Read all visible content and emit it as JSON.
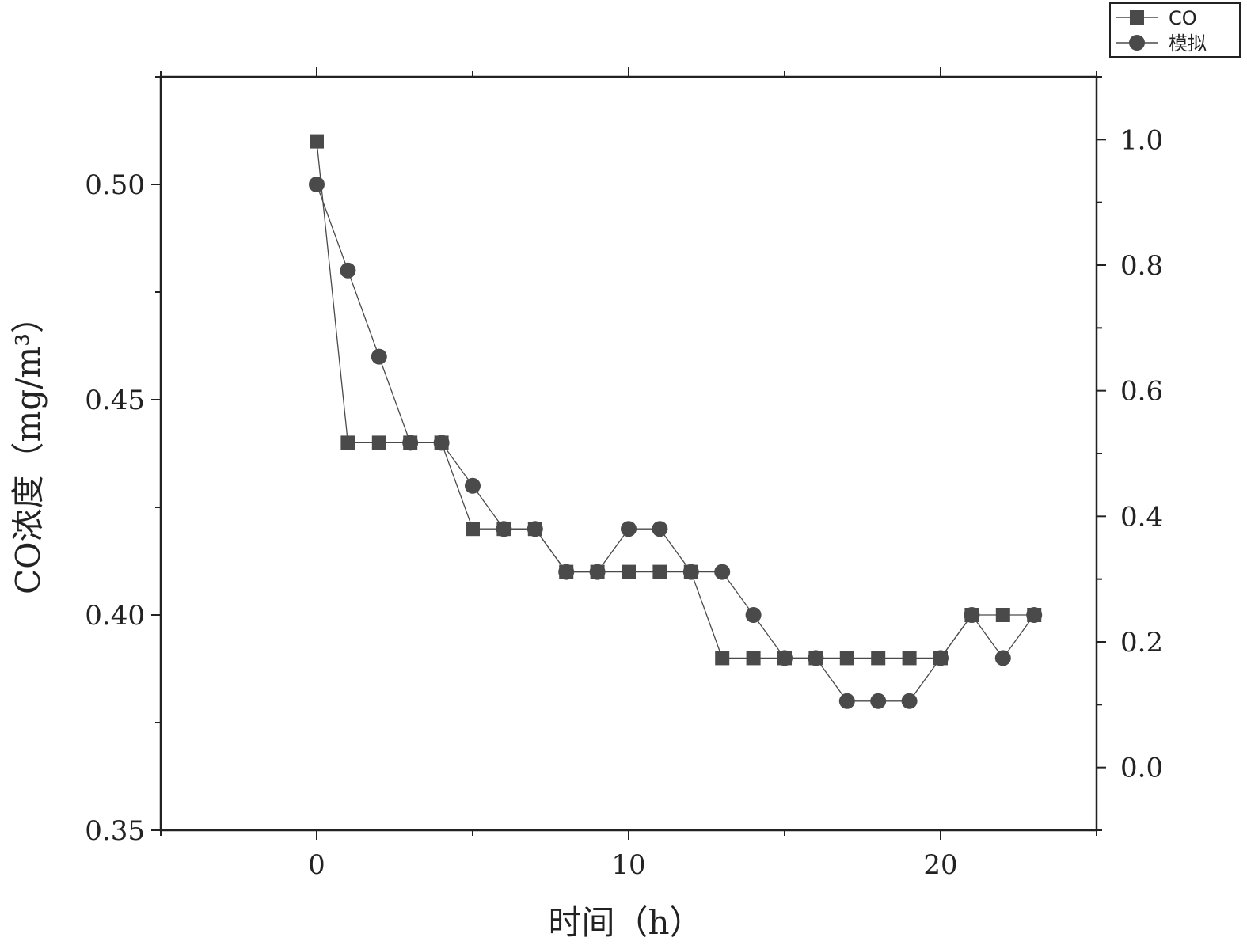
{
  "chart_data": {
    "type": "line",
    "xlabel": "时间（h）",
    "ylabel": "CO浓度（mg/m³）",
    "xlim": [
      -5,
      25
    ],
    "ylim": [
      0.35,
      0.525
    ],
    "y2lim": [
      -0.1,
      1.1
    ],
    "x_ticks": [
      0,
      10,
      20
    ],
    "x_tick_labels": [
      "0",
      "10",
      "20"
    ],
    "y_ticks": [
      0.35,
      0.4,
      0.45,
      0.5
    ],
    "y_tick_labels": [
      "0.35",
      "0.40",
      "0.45",
      "0.50"
    ],
    "y2_ticks": [
      0.0,
      0.2,
      0.4,
      0.6,
      0.8,
      1.0
    ],
    "y2_tick_labels": [
      "0.0",
      "0.2",
      "0.4",
      "0.6",
      "0.8",
      "1.0"
    ],
    "grid": false,
    "legend_position": "top-right",
    "x": [
      0,
      1,
      2,
      3,
      4,
      5,
      6,
      7,
      8,
      9,
      10,
      11,
      12,
      13,
      14,
      15,
      16,
      17,
      18,
      19,
      20,
      21,
      22,
      23
    ],
    "series": [
      {
        "name": "CO",
        "marker": "square",
        "color": "#4a4a4a",
        "values": [
          0.51,
          0.44,
          0.44,
          0.44,
          0.44,
          0.42,
          0.42,
          0.42,
          0.41,
          0.41,
          0.41,
          0.41,
          0.41,
          0.39,
          0.39,
          0.39,
          0.39,
          0.39,
          0.39,
          0.39,
          0.39,
          0.4,
          0.4,
          0.4
        ]
      },
      {
        "name": "模拟",
        "marker": "circle",
        "color": "#4a4a4a",
        "values": [
          0.5,
          0.48,
          0.46,
          0.44,
          0.44,
          0.43,
          0.42,
          0.42,
          0.41,
          0.41,
          0.42,
          0.42,
          0.41,
          0.41,
          0.4,
          0.39,
          0.39,
          0.38,
          0.38,
          0.38,
          0.39,
          0.4,
          0.39,
          0.4
        ]
      }
    ]
  }
}
